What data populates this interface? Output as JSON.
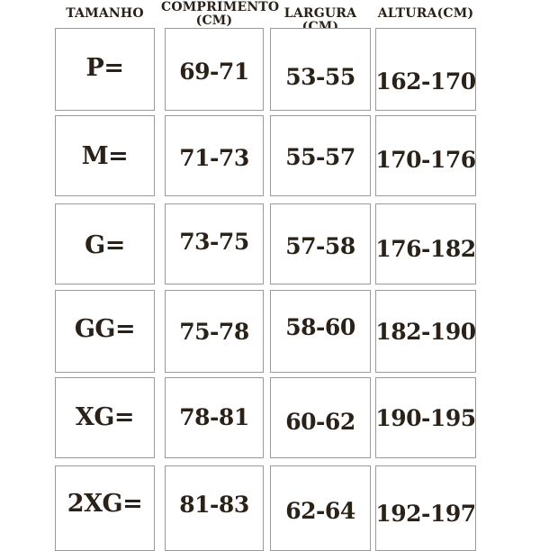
{
  "table": {
    "column_headers": [
      "TAMANHO",
      "COMPRIMENTO (CM)",
      "LARGURA (CM)",
      "ALTURA(CM)"
    ],
    "rows": [
      {
        "tamanho": "P=",
        "comprimento": "69-71",
        "largura": "53-55",
        "altura": "162-170"
      },
      {
        "tamanho": "M=",
        "comprimento": "71-73",
        "largura": "55-57",
        "altura": "170-176"
      },
      {
        "tamanho": "G=",
        "comprimento": "73-75",
        "largura": "57-58",
        "altura": "176-182"
      },
      {
        "tamanho": "GG=",
        "comprimento": "75-78",
        "largura": "58-60",
        "altura": "182-190"
      },
      {
        "tamanho": "XG=",
        "comprimento": "78-81",
        "largura": "60-62",
        "altura": "190-195"
      },
      {
        "tamanho": "2XG=",
        "comprimento": "81-83",
        "largura": "62-64",
        "altura": "192-197"
      }
    ]
  },
  "colors": {
    "text": "#2a2119",
    "border": "#9a9a9a",
    "background": "#ffffff"
  }
}
